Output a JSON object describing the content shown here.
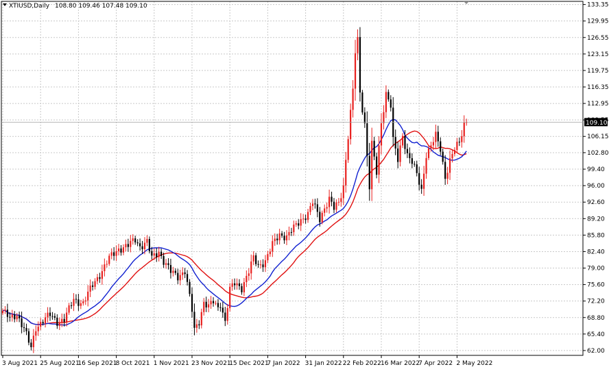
{
  "header": {
    "symbol": "XTIUSD,Daily",
    "ohlc": "108.80 109.46 107.48 109.10"
  },
  "colors": {
    "background": "#ffffff",
    "grid": "#c8c8c8",
    "bull_candle": "#e8201e",
    "bear_candle": "#000000",
    "ma_fast": "#1020d0",
    "ma_slow": "#e01010",
    "price_marker_bg": "#000000",
    "price_marker_text": "#ffffff"
  },
  "chart_data": {
    "type": "candlestick",
    "title": "XTIUSD,Daily",
    "ohlc_readout": "108.80 109.46 107.48 109.10",
    "last_price": 109.1,
    "last_price_label": "109.10",
    "grid": true,
    "ylim": [
      61.0,
      134.0
    ],
    "y_ticks": [
      {
        "value": 133.35,
        "label": "133.35"
      },
      {
        "value": 129.95,
        "label": "129.95"
      },
      {
        "value": 126.55,
        "label": "126.55"
      },
      {
        "value": 123.15,
        "label": "123.15"
      },
      {
        "value": 119.75,
        "label": "119.75"
      },
      {
        "value": 116.35,
        "label": "116.35"
      },
      {
        "value": 112.95,
        "label": "112.95"
      },
      {
        "value": 109.55,
        "label": "109.55"
      },
      {
        "value": 106.15,
        "label": "106.15"
      },
      {
        "value": 102.8,
        "label": "102.80"
      },
      {
        "value": 99.4,
        "label": "99.40"
      },
      {
        "value": 96.0,
        "label": "96.00"
      },
      {
        "value": 92.6,
        "label": "92.60"
      },
      {
        "value": 89.2,
        "label": "89.20"
      },
      {
        "value": 85.8,
        "label": "85.80"
      },
      {
        "value": 82.4,
        "label": "82.40"
      },
      {
        "value": 79.0,
        "label": "79.00"
      },
      {
        "value": 75.6,
        "label": "75.60"
      },
      {
        "value": 72.2,
        "label": "72.20"
      },
      {
        "value": 68.8,
        "label": "68.80"
      },
      {
        "value": 65.4,
        "label": "65.40"
      },
      {
        "value": 62.0,
        "label": "62.00"
      }
    ],
    "x_ticks": [
      {
        "bar": 0,
        "label": "3 Aug 2021"
      },
      {
        "bar": 16,
        "label": "25 Aug 2021"
      },
      {
        "bar": 32,
        "label": "16 Sep 2021"
      },
      {
        "bar": 48,
        "label": "8 Oct 2021"
      },
      {
        "bar": 64,
        "label": "1 Nov 2021"
      },
      {
        "bar": 80,
        "label": "23 Nov 2021"
      },
      {
        "bar": 96,
        "label": "15 Dec 2021"
      },
      {
        "bar": 112,
        "label": "7 Jan 2022"
      },
      {
        "bar": 128,
        "label": "31 Jan 2022"
      },
      {
        "bar": 144,
        "label": "22 Feb 2022"
      },
      {
        "bar": 160,
        "label": "16 Mar 2022"
      },
      {
        "bar": 176,
        "label": "7 Apr 2022"
      },
      {
        "bar": 192,
        "label": "2 May 2022"
      }
    ],
    "bar_count": 197,
    "anchors": [
      [
        0,
        70.2
      ],
      [
        3,
        68.5
      ],
      [
        6,
        69.5
      ],
      [
        9,
        66.5
      ],
      [
        12,
        62.4
      ],
      [
        14,
        66.8
      ],
      [
        17,
        68.2
      ],
      [
        20,
        69.3
      ],
      [
        23,
        68.0
      ],
      [
        26,
        68.4
      ],
      [
        30,
        72.5
      ],
      [
        34,
        71.8
      ],
      [
        38,
        75.5
      ],
      [
        42,
        78.5
      ],
      [
        45,
        81.0
      ],
      [
        49,
        83.0
      ],
      [
        53,
        83.6
      ],
      [
        56,
        84.9
      ],
      [
        58,
        83.5
      ],
      [
        61,
        84.4
      ],
      [
        63,
        81.0
      ],
      [
        66,
        82.5
      ],
      [
        68,
        80.5
      ],
      [
        71,
        78.2
      ],
      [
        74,
        77.3
      ],
      [
        77,
        78.5
      ],
      [
        80,
        70.2
      ],
      [
        81,
        66.2
      ],
      [
        83,
        68.1
      ],
      [
        85,
        72.0
      ],
      [
        87,
        71.0
      ],
      [
        89,
        72.0
      ],
      [
        91,
        70.8
      ],
      [
        92,
        71.8
      ],
      [
        94,
        68.0
      ],
      [
        96,
        74.5
      ],
      [
        98,
        75.8
      ],
      [
        101,
        75.0
      ],
      [
        104,
        78.3
      ],
      [
        106,
        81.0
      ],
      [
        108,
        79.5
      ],
      [
        111,
        80.5
      ],
      [
        114,
        83.8
      ],
      [
        117,
        86.0
      ],
      [
        120,
        85.5
      ],
      [
        123,
        87.2
      ],
      [
        126,
        89.0
      ],
      [
        129,
        90.2
      ],
      [
        131,
        92.5
      ],
      [
        134,
        89.2
      ],
      [
        136,
        91.5
      ],
      [
        138,
        93.2
      ],
      [
        140,
        91.2
      ],
      [
        142,
        92.5
      ],
      [
        144,
        96.0
      ],
      [
        145,
        101.5
      ],
      [
        147,
        111.0
      ],
      [
        148,
        115.5
      ],
      [
        149,
        123.5
      ],
      [
        150,
        126.0
      ],
      [
        151,
        115.2
      ],
      [
        153,
        108.8
      ],
      [
        155,
        95.8
      ],
      [
        156,
        104.5
      ],
      [
        158,
        98.5
      ],
      [
        160,
        109.0
      ],
      [
        162,
        115.2
      ],
      [
        164,
        112.5
      ],
      [
        165,
        105.2
      ],
      [
        167,
        101.2
      ],
      [
        169,
        106.5
      ],
      [
        171,
        102.5
      ],
      [
        173,
        100.8
      ],
      [
        175,
        98.2
      ],
      [
        177,
        95.0
      ],
      [
        179,
        102.6
      ],
      [
        181,
        104.2
      ],
      [
        183,
        106.2
      ],
      [
        185,
        103.5
      ],
      [
        187,
        97.8
      ],
      [
        189,
        101.2
      ],
      [
        191,
        103.5
      ],
      [
        193,
        104.8
      ],
      [
        195,
        108.8
      ],
      [
        196,
        109.1
      ]
    ],
    "series": [
      {
        "style": "candles"
      },
      {
        "type": "line",
        "role": "moving-average",
        "color": "#1020d0"
      },
      {
        "type": "line",
        "role": "moving-average",
        "color": "#e01010"
      }
    ]
  }
}
